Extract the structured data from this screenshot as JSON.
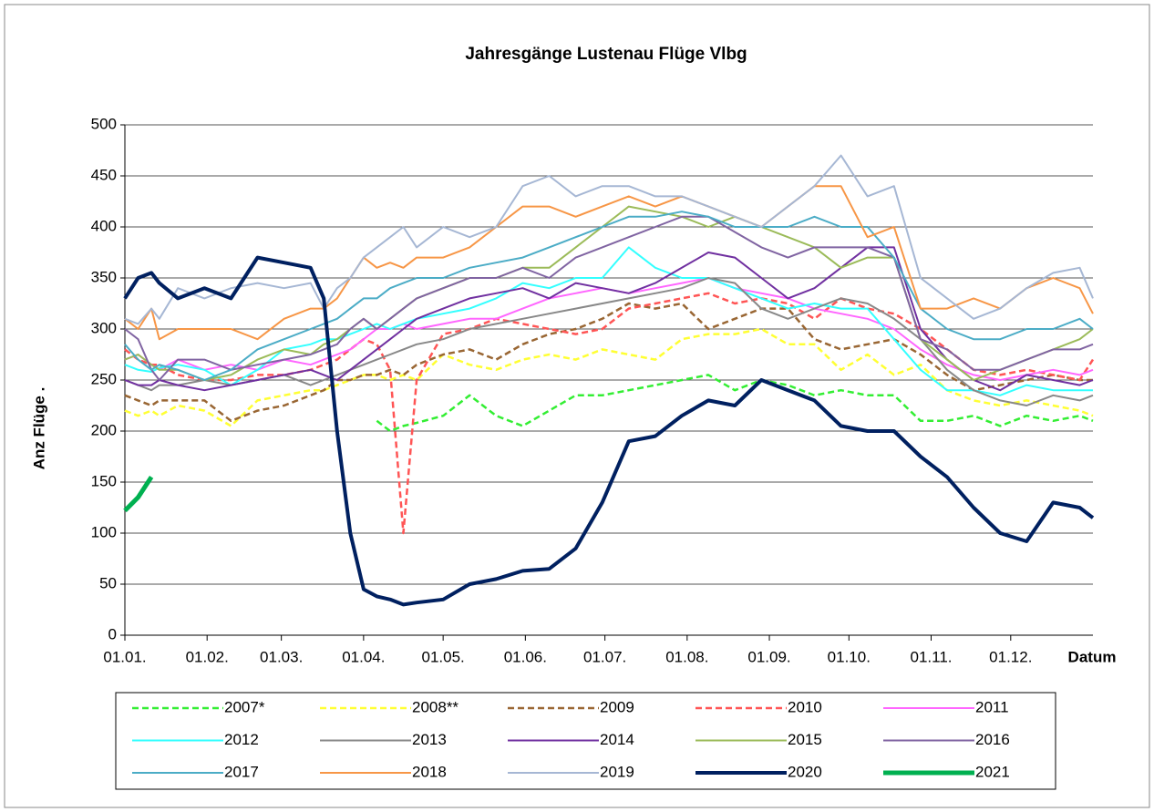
{
  "chart_data": {
    "type": "line",
    "title": "Jahresgänge Lustenau Flüge Vlbg",
    "x_label": "Datum",
    "y_label": "Anz Flüge .",
    "xlim": [
      0,
      365
    ],
    "ylim": [
      0,
      500
    ],
    "xticks": [
      {
        "value": 0,
        "label": "01.01."
      },
      {
        "value": 31,
        "label": "01.02."
      },
      {
        "value": 59,
        "label": "01.03."
      },
      {
        "value": 90,
        "label": "01.04."
      },
      {
        "value": 120,
        "label": "01.05."
      },
      {
        "value": 151,
        "label": "01.06."
      },
      {
        "value": 181,
        "label": "01.07."
      },
      {
        "value": 212,
        "label": "01.08."
      },
      {
        "value": 243,
        "label": "01.09."
      },
      {
        "value": 273,
        "label": "01.10."
      },
      {
        "value": 304,
        "label": "01.11."
      },
      {
        "value": 334,
        "label": "01.12."
      }
    ],
    "yticks": [
      0,
      50,
      100,
      150,
      200,
      250,
      300,
      350,
      400,
      450,
      500
    ],
    "grid": true,
    "x": [
      0,
      5,
      10,
      13,
      20,
      30,
      40,
      50,
      60,
      70,
      75,
      80,
      85,
      90,
      95,
      100,
      105,
      110,
      120,
      130,
      140,
      150,
      160,
      170,
      180,
      190,
      200,
      210,
      220,
      230,
      240,
      250,
      260,
      270,
      280,
      290,
      300,
      310,
      320,
      330,
      340,
      350,
      360,
      365
    ],
    "series": [
      {
        "name": "2007*",
        "color": "#33ee33",
        "style": "dashed",
        "width": 2.5,
        "values": [
          null,
          null,
          null,
          null,
          null,
          null,
          null,
          null,
          null,
          null,
          null,
          null,
          null,
          null,
          210,
          200,
          205,
          208,
          215,
          235,
          215,
          205,
          220,
          235,
          235,
          240,
          245,
          250,
          255,
          240,
          250,
          245,
          235,
          240,
          235,
          235,
          210,
          210,
          215,
          205,
          215,
          210,
          215,
          210
        ]
      },
      {
        "name": "2008**",
        "color": "#ffff33",
        "style": "dashed",
        "width": 2.5,
        "values": [
          220,
          215,
          220,
          215,
          225,
          220,
          205,
          230,
          235,
          240,
          240,
          245,
          250,
          255,
          255,
          250,
          255,
          250,
          275,
          265,
          260,
          270,
          275,
          270,
          280,
          275,
          270,
          290,
          295,
          295,
          300,
          285,
          285,
          260,
          275,
          255,
          265,
          240,
          230,
          225,
          230,
          225,
          220,
          215
        ]
      },
      {
        "name": "2009",
        "color": "#996633",
        "style": "dashed",
        "width": 2.5,
        "values": [
          235,
          230,
          225,
          230,
          230,
          230,
          210,
          220,
          225,
          235,
          240,
          250,
          250,
          255,
          255,
          260,
          255,
          265,
          275,
          280,
          270,
          285,
          295,
          300,
          310,
          325,
          320,
          325,
          300,
          310,
          320,
          320,
          290,
          280,
          285,
          290,
          275,
          255,
          240,
          245,
          250,
          255,
          250,
          250
        ]
      },
      {
        "name": "2010",
        "color": "#ff5555",
        "style": "dashed",
        "width": 2.5,
        "values": [
          280,
          270,
          265,
          265,
          255,
          250,
          250,
          255,
          255,
          260,
          265,
          270,
          280,
          290,
          285,
          260,
          100,
          250,
          295,
          300,
          310,
          305,
          300,
          295,
          300,
          320,
          325,
          330,
          335,
          325,
          330,
          325,
          310,
          330,
          320,
          315,
          300,
          280,
          260,
          255,
          260,
          255,
          250,
          270
        ]
      },
      {
        "name": "2011",
        "color": "#ff66ff",
        "style": "solid",
        "width": 2,
        "values": [
          270,
          275,
          265,
          260,
          270,
          260,
          265,
          260,
          270,
          265,
          270,
          275,
          280,
          290,
          300,
          300,
          305,
          300,
          305,
          310,
          310,
          320,
          330,
          335,
          340,
          335,
          340,
          345,
          350,
          340,
          335,
          330,
          320,
          315,
          310,
          300,
          280,
          265,
          255,
          250,
          255,
          260,
          255,
          260
        ]
      },
      {
        "name": "2012",
        "color": "#33ffff",
        "style": "solid",
        "width": 2,
        "values": [
          265,
          260,
          258,
          262,
          265,
          260,
          245,
          260,
          280,
          285,
          290,
          290,
          295,
          300,
          305,
          300,
          305,
          310,
          315,
          320,
          330,
          345,
          340,
          350,
          350,
          380,
          360,
          350,
          350,
          340,
          330,
          320,
          325,
          320,
          320,
          290,
          260,
          240,
          240,
          235,
          245,
          240,
          240,
          240
        ]
      },
      {
        "name": "2013",
        "color": "#888888",
        "style": "solid",
        "width": 2,
        "values": [
          250,
          245,
          240,
          245,
          245,
          250,
          245,
          250,
          255,
          245,
          250,
          255,
          260,
          265,
          270,
          275,
          280,
          285,
          290,
          300,
          305,
          310,
          315,
          320,
          325,
          330,
          335,
          340,
          350,
          345,
          320,
          310,
          320,
          330,
          325,
          310,
          290,
          260,
          240,
          230,
          225,
          235,
          230,
          235
        ]
      },
      {
        "name": "2014",
        "color": "#7030a0",
        "style": "solid",
        "width": 2,
        "values": [
          250,
          245,
          245,
          250,
          245,
          240,
          245,
          250,
          255,
          260,
          255,
          250,
          260,
          270,
          280,
          290,
          300,
          310,
          320,
          330,
          335,
          340,
          330,
          345,
          340,
          335,
          345,
          360,
          375,
          370,
          350,
          330,
          340,
          360,
          380,
          380,
          300,
          270,
          250,
          240,
          255,
          250,
          245,
          250
        ]
      },
      {
        "name": "2015",
        "color": "#9bbb59",
        "style": "solid",
        "width": 2,
        "values": [
          270,
          275,
          265,
          260,
          260,
          250,
          255,
          270,
          280,
          275,
          285,
          290,
          300,
          310,
          300,
          310,
          320,
          330,
          340,
          350,
          350,
          360,
          360,
          380,
          400,
          420,
          415,
          410,
          400,
          410,
          400,
          390,
          380,
          360,
          370,
          370,
          290,
          270,
          250,
          260,
          270,
          280,
          290,
          300
        ]
      },
      {
        "name": "2016",
        "color": "#8064a2",
        "style": "solid",
        "width": 2,
        "values": [
          300,
          290,
          260,
          250,
          270,
          270,
          260,
          265,
          270,
          275,
          280,
          285,
          300,
          310,
          300,
          310,
          320,
          330,
          340,
          350,
          350,
          360,
          350,
          370,
          380,
          390,
          400,
          410,
          410,
          395,
          380,
          370,
          380,
          380,
          380,
          370,
          290,
          280,
          260,
          260,
          270,
          280,
          280,
          285
        ]
      },
      {
        "name": "2017",
        "color": "#4bacc6",
        "style": "solid",
        "width": 2,
        "values": [
          285,
          270,
          260,
          265,
          260,
          250,
          260,
          280,
          290,
          300,
          305,
          310,
          320,
          330,
          330,
          340,
          345,
          350,
          350,
          360,
          365,
          370,
          380,
          390,
          400,
          410,
          410,
          415,
          410,
          400,
          400,
          400,
          410,
          400,
          400,
          370,
          320,
          300,
          290,
          290,
          300,
          300,
          310,
          300
        ]
      },
      {
        "name": "2018",
        "color": "#f79646",
        "style": "solid",
        "width": 2,
        "values": [
          310,
          300,
          320,
          290,
          300,
          300,
          300,
          290,
          310,
          320,
          320,
          330,
          350,
          370,
          360,
          365,
          360,
          370,
          370,
          380,
          400,
          420,
          420,
          410,
          420,
          430,
          420,
          430,
          420,
          410,
          400,
          420,
          440,
          440,
          390,
          400,
          320,
          320,
          330,
          320,
          340,
          350,
          340,
          315
        ]
      },
      {
        "name": "2019",
        "color": "#a6b7d4",
        "style": "solid",
        "width": 2,
        "values": [
          310,
          305,
          320,
          310,
          340,
          330,
          340,
          345,
          340,
          345,
          320,
          340,
          350,
          370,
          380,
          390,
          400,
          380,
          400,
          390,
          400,
          440,
          450,
          430,
          440,
          440,
          430,
          430,
          420,
          410,
          400,
          420,
          440,
          470,
          430,
          440,
          350,
          330,
          310,
          320,
          340,
          355,
          360,
          330
        ]
      },
      {
        "name": "2020",
        "color": "#002060",
        "style": "solid",
        "width": 4,
        "values": [
          330,
          350,
          355,
          345,
          330,
          340,
          330,
          370,
          365,
          360,
          330,
          200,
          100,
          45,
          38,
          35,
          30,
          32,
          35,
          50,
          55,
          63,
          65,
          85,
          130,
          190,
          195,
          215,
          230,
          225,
          250,
          240,
          230,
          205,
          200,
          200,
          175,
          155,
          125,
          100,
          92,
          130,
          125,
          115
        ]
      },
      {
        "name": "2021",
        "color": "#00b050",
        "style": "solid",
        "width": 5,
        "values": [
          122,
          135,
          155,
          null,
          null,
          null,
          null,
          null,
          null,
          null,
          null,
          null,
          null,
          null,
          null,
          null,
          null,
          null,
          null,
          null,
          null,
          null,
          null,
          null,
          null,
          null,
          null,
          null,
          null,
          null,
          null,
          null,
          null,
          null,
          null,
          null,
          null,
          null,
          null,
          null,
          null,
          null,
          null,
          null
        ]
      }
    ]
  }
}
